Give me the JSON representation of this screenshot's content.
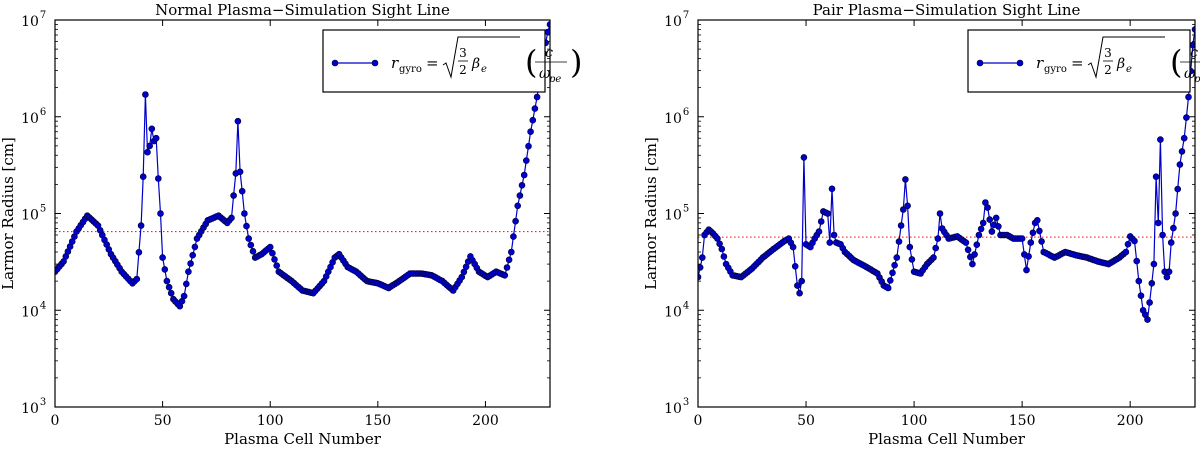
{
  "chart_data": [
    {
      "type": "line",
      "title": "Normal Plasma−Simulation Sight Line",
      "xlabel": "Plasma Cell Number",
      "ylabel": "Larmor Radius [cm]",
      "xlim": [
        0,
        230
      ],
      "ylim": [
        1000,
        10000000
      ],
      "yscale": "log",
      "xticks": [
        0,
        50,
        100,
        150,
        200
      ],
      "xtick_labels": [
        "0",
        "50",
        "100",
        "150",
        "200"
      ],
      "yticks": [
        1000,
        10000,
        100000,
        1000000,
        10000000
      ],
      "ytick_labels": [
        "10",
        "10",
        "10",
        "10",
        "10"
      ],
      "ytick_exponents": [
        "3",
        "4",
        "5",
        "6",
        "7"
      ],
      "legend": {
        "position": "top-right",
        "entry": "r_gyro = √(3/2 β_e) (c / ω_pe)",
        "math": {
          "lhs": "r",
          "lhs_sub": "gyro",
          "frac_top": "3",
          "frac_bottom": "2",
          "beta": "β",
          "beta_sub": "e",
          "c": "c",
          "omega": "ω",
          "omega_sub": "pe"
        }
      },
      "reference_line": {
        "value": 65000,
        "color": "#ff0000",
        "style": "dotted"
      },
      "series": [
        {
          "name": "r_gyro",
          "color": "#0000cc",
          "marker": "circle",
          "keypoints_x": [
            0,
            4,
            10,
            15,
            20,
            26,
            31,
            36,
            38,
            40,
            41,
            42,
            43,
            44,
            45,
            46,
            47,
            48,
            49,
            50,
            52,
            55,
            58,
            60,
            62,
            66,
            71,
            76,
            80,
            82,
            84,
            85,
            86,
            87,
            88,
            90,
            93,
            96,
            100,
            104,
            110,
            115,
            120,
            125,
            130,
            132,
            136,
            140,
            145,
            150,
            155,
            160,
            165,
            170,
            175,
            180,
            185,
            189,
            193,
            197,
            201,
            205,
            209,
            212,
            215,
            218,
            221,
            224,
            227,
            229,
            230
          ],
          "keypoints_y": [
            25000,
            32000,
            65000,
            95000,
            75000,
            38000,
            25000,
            19000,
            21000,
            75000,
            240000,
            1700000,
            430000,
            500000,
            750000,
            560000,
            600000,
            230000,
            100000,
            35000,
            20000,
            13000,
            11000,
            14000,
            25000,
            55000,
            85000,
            95000,
            80000,
            90000,
            260000,
            900000,
            270000,
            170000,
            100000,
            55000,
            35000,
            38000,
            45000,
            25000,
            20000,
            16000,
            15000,
            20000,
            35000,
            38000,
            28000,
            25000,
            20000,
            19000,
            17000,
            20000,
            24000,
            24000,
            23000,
            20000,
            16000,
            22000,
            36000,
            25000,
            22000,
            25000,
            23000,
            40000,
            120000,
            250000,
            700000,
            1600000,
            4500000,
            7500000,
            9000000
          ]
        }
      ]
    },
    {
      "type": "line",
      "title": "Pair Plasma−Simulation Sight Line",
      "xlabel": "Plasma Cell Number",
      "ylabel": "Larmor Radius [cm]",
      "xlim": [
        0,
        230
      ],
      "ylim": [
        1000,
        10000000
      ],
      "yscale": "log",
      "xticks": [
        0,
        50,
        100,
        150,
        200
      ],
      "xtick_labels": [
        "0",
        "50",
        "100",
        "150",
        "200"
      ],
      "yticks": [
        1000,
        10000,
        100000,
        1000000,
        10000000
      ],
      "ytick_labels": [
        "10",
        "10",
        "10",
        "10",
        "10"
      ],
      "ytick_exponents": [
        "3",
        "4",
        "5",
        "6",
        "7"
      ],
      "legend": {
        "position": "top-right",
        "entry": "r_gyro = √(3/2 β_e) (c / ω_pe)",
        "math": {
          "lhs": "r",
          "lhs_sub": "gyro",
          "frac_top": "3",
          "frac_bottom": "2",
          "beta": "β",
          "beta_sub": "e",
          "c": "c",
          "omega": "ω",
          "omega_sub": "pe"
        }
      },
      "reference_line": {
        "value": 57000,
        "color": "#ff0000",
        "style": "dotted"
      },
      "series": [
        {
          "name": "r_gyro",
          "color": "#0000cc",
          "marker": "circle",
          "keypoints_x": [
            0,
            2,
            3,
            5,
            7,
            9,
            11,
            13,
            16,
            20,
            25,
            30,
            35,
            40,
            42,
            44,
            46,
            47,
            48,
            49,
            50,
            52,
            54,
            56,
            58,
            60,
            61,
            62,
            63,
            64,
            66,
            68,
            72,
            78,
            83,
            86,
            88,
            92,
            95,
            96,
            97,
            98,
            100,
            103,
            106,
            109,
            111,
            112,
            113,
            116,
            120,
            124,
            127,
            130,
            132,
            133,
            134,
            136,
            138,
            140,
            143,
            146,
            150,
            152,
            154,
            156,
            157,
            160,
            165,
            170,
            175,
            180,
            185,
            190,
            195,
            198,
            200,
            202,
            204,
            206,
            207,
            208,
            209,
            211,
            212,
            213,
            214,
            215,
            216,
            217,
            218,
            219,
            221,
            223,
            225,
            227,
            229,
            230
          ],
          "keypoints_y": [
            22000,
            35000,
            60000,
            68000,
            62000,
            55000,
            43000,
            30000,
            23000,
            22000,
            27000,
            35000,
            43000,
            52000,
            55000,
            45000,
            18000,
            15000,
            20000,
            380000,
            48000,
            45000,
            55000,
            65000,
            105000,
            100000,
            50000,
            180000,
            60000,
            50000,
            48000,
            40000,
            33000,
            28000,
            24000,
            18000,
            17000,
            35000,
            110000,
            225000,
            120000,
            45000,
            25000,
            24000,
            30000,
            35000,
            55000,
            100000,
            70000,
            55000,
            58000,
            50000,
            30000,
            60000,
            80000,
            130000,
            115000,
            65000,
            90000,
            60000,
            60000,
            55000,
            55000,
            26000,
            50000,
            80000,
            85000,
            40000,
            35000,
            40000,
            37000,
            35000,
            32000,
            30000,
            35000,
            40000,
            58000,
            52000,
            20000,
            10000,
            9000,
            8000,
            12000,
            30000,
            240000,
            80000,
            580000,
            60000,
            25000,
            22000,
            25000,
            50000,
            100000,
            320000,
            600000,
            1600000,
            5500000,
            8000000
          ]
        }
      ]
    }
  ]
}
